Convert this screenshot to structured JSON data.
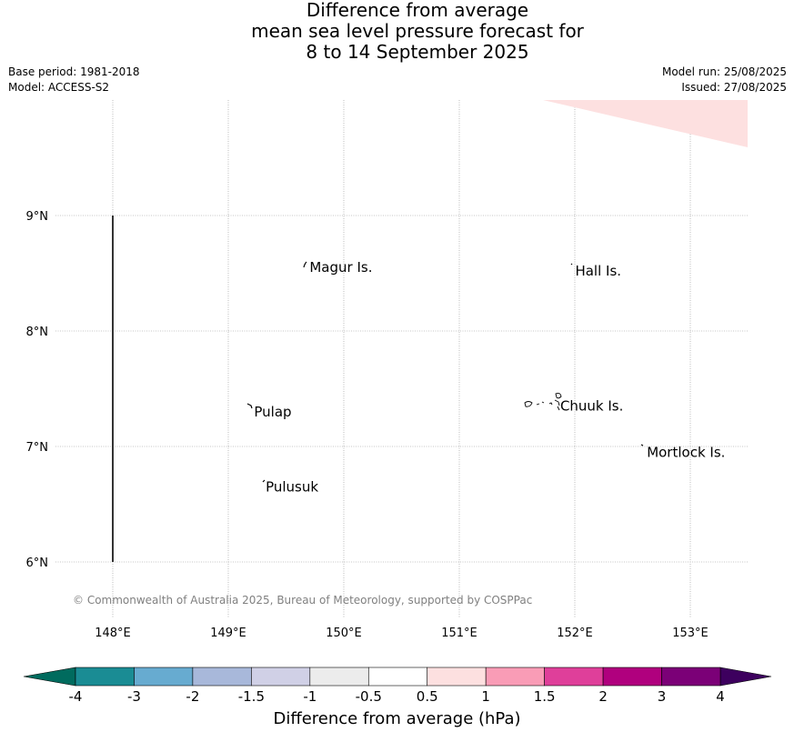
{
  "header": {
    "title_line1": "Difference from average",
    "title_line2": "mean sea level pressure forecast for",
    "title_line3": "8 to 14 September 2025",
    "base_period": "Base period: 1981-2018",
    "model": "Model: ACCESS-S2",
    "model_run": "Model run: 25/08/2025",
    "issued": "Issued: 27/08/2025"
  },
  "map": {
    "lon_ticks": [
      {
        "value": 148,
        "label": "148°E"
      },
      {
        "value": 149,
        "label": "149°E"
      },
      {
        "value": 150,
        "label": "150°E"
      },
      {
        "value": 151,
        "label": "151°E"
      },
      {
        "value": 152,
        "label": "152°E"
      },
      {
        "value": 153,
        "label": "153°E"
      }
    ],
    "lat_ticks": [
      {
        "value": 9,
        "label": "9°N"
      },
      {
        "value": 8,
        "label": "8°N"
      },
      {
        "value": 7,
        "label": "7°N"
      },
      {
        "value": 6,
        "label": "6°N"
      }
    ],
    "lon_range": [
      147.6,
      153.5
    ],
    "lat_range": [
      5.5,
      10.0
    ],
    "places": [
      {
        "name": "Magur Is.",
        "lon": 149.68,
        "lat": 8.55
      },
      {
        "name": "Hall Is.",
        "lon": 151.98,
        "lat": 8.52
      },
      {
        "name": "Pulap",
        "lon": 149.2,
        "lat": 7.3
      },
      {
        "name": "Chuuk Is.",
        "lon": 151.85,
        "lat": 7.35
      },
      {
        "name": "Mortlock Is.",
        "lon": 152.6,
        "lat": 6.95
      },
      {
        "name": "Pulusuk",
        "lon": 149.3,
        "lat": 6.65
      }
    ],
    "anomaly_region": {
      "category": "0.5 to 1",
      "color": "#fde0e0"
    },
    "copyright": "© Commonwealth of Australia 2025, Bureau of Meteorology, supported by COSPPac"
  },
  "colorbar": {
    "label": "Difference from average (hPa)",
    "ticks": [
      "-4",
      "-3",
      "-2",
      "-1.5",
      "-1",
      "-0.5",
      "0.5",
      "1",
      "1.5",
      "2",
      "3",
      "4"
    ],
    "low_extend_color": "#006b5e",
    "high_extend_color": "#3d005e",
    "colors": [
      "#1a8c94",
      "#67abd0",
      "#a8b8da",
      "#d0d0e6",
      "#ececec",
      "#ffffff",
      "#fde0e0",
      "#f99cb6",
      "#df3f9a",
      "#b0007e",
      "#7b0077"
    ]
  }
}
